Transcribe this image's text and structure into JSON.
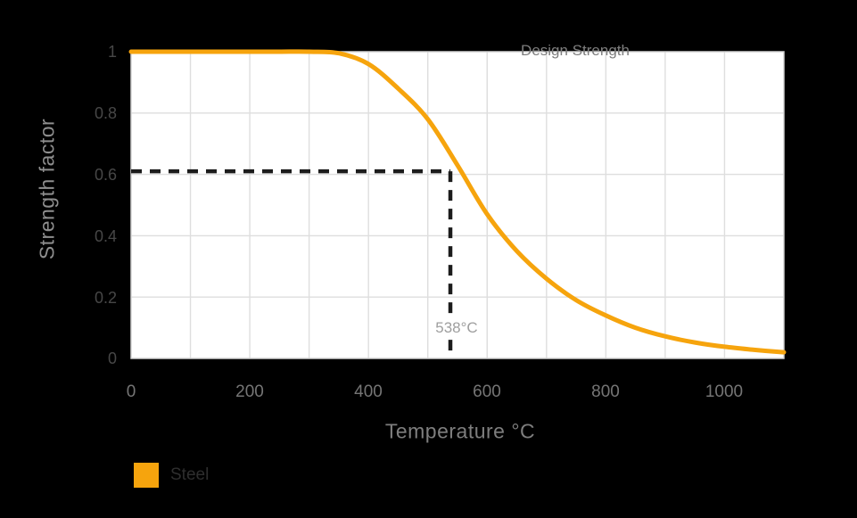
{
  "chart_data": {
    "type": "line",
    "title": "",
    "xlabel": "Temperature °C",
    "ylabel": "Strength factor",
    "xlim": [
      0,
      1100
    ],
    "ylim": [
      0,
      1
    ],
    "x_ticks": [
      "0",
      "200",
      "400",
      "600",
      "800",
      "1000"
    ],
    "y_ticks": [
      "1",
      "0.8",
      "0.6",
      "0.4",
      "0.2",
      "0"
    ],
    "grid": {
      "x_interval_c": 100,
      "y_interval": 0.2,
      "color": "#dedede",
      "visible": true
    },
    "legend_position": "bottom-left",
    "series": [
      {
        "name": "Steel",
        "color": "#F6A40D",
        "x": [
          0,
          50,
          100,
          150,
          200,
          250,
          300,
          350,
          400,
          450,
          500,
          550,
          600,
          650,
          700,
          750,
          800,
          850,
          900,
          950,
          1000,
          1050,
          1100
        ],
        "y": [
          1,
          1,
          1,
          1,
          1,
          1,
          1,
          0.995,
          0.96,
          0.88,
          0.78,
          0.63,
          0.47,
          0.35,
          0.26,
          0.19,
          0.14,
          0.1,
          0.072,
          0.052,
          0.038,
          0.028,
          0.02
        ]
      }
    ],
    "reference_point": {
      "temperature_c": 538,
      "strength_factor": 0.61,
      "line_style": "dashed",
      "line_color": "#1c1c1c"
    },
    "annotations": [
      {
        "id": "design-strength",
        "text": "Design Strength"
      },
      {
        "id": "reference-temperature",
        "text": "538°C"
      }
    ]
  },
  "legend": {
    "items": [
      {
        "label": "Steel",
        "color": "#F6A40D"
      }
    ]
  },
  "colors": {
    "page_background": "#000000",
    "plot_background": "#ffffff",
    "plot_border": "#d3d3d3",
    "grid": "#dedede",
    "curve": "#F6A40D",
    "dashed_line": "#1c1c1c"
  }
}
